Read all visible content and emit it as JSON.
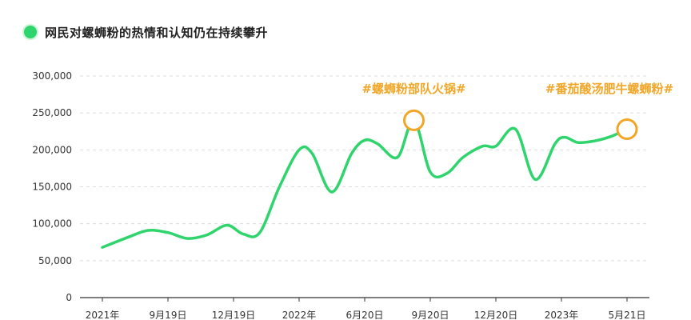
{
  "chart_data": {
    "type": "line",
    "title": "网民对螺蛳粉的热情和认知仍在持续攀升",
    "xlabel": "",
    "ylabel": "",
    "ylim": [
      0,
      300000
    ],
    "yticks": [
      0,
      50000,
      100000,
      150000,
      200000,
      250000,
      300000
    ],
    "ytick_labels": [
      "0",
      "50,000",
      "100,000",
      "150,000",
      "200,000",
      "250,000",
      "300,000"
    ],
    "xticks": [
      0,
      1,
      2,
      3,
      4,
      5,
      6,
      7,
      8,
      9
    ],
    "xtick_labels": [
      "2021年",
      "9月19日",
      "12月19日",
      "2022年",
      "6月20日",
      "9月20日",
      "12月20日",
      "2023年",
      "5月21日",
      ""
    ],
    "grid": true,
    "color": "#2fd46d",
    "highlight_color": "#f2a627",
    "series": [
      {
        "name": "",
        "x": [
          0.0,
          0.4,
          0.7,
          1.0,
          1.3,
          1.6,
          1.9,
          2.15,
          2.4,
          2.7,
          3.0,
          3.2,
          3.5,
          3.8,
          4.0,
          4.2,
          4.5,
          4.75,
          5.0,
          5.25,
          5.5,
          5.8,
          6.0,
          6.3,
          6.6,
          6.9,
          7.05,
          7.25,
          7.5,
          7.75,
          8.0
        ],
        "y": [
          68000,
          82000,
          91000,
          88000,
          80000,
          85000,
          98000,
          86000,
          88000,
          150000,
          200000,
          195000,
          143000,
          195000,
          213000,
          208000,
          190000,
          240000,
          170000,
          168000,
          190000,
          205000,
          205000,
          228000,
          160000,
          208000,
          217000,
          210000,
          212000,
          218000,
          228000
        ]
      }
    ],
    "annotations": [
      {
        "text": "#螺蛳粉部队火锅#",
        "x": 4.75,
        "y": 240000
      },
      {
        "text": "#番茄酸汤肥牛螺蛳粉#",
        "x": 8.0,
        "y": 228000
      }
    ]
  }
}
